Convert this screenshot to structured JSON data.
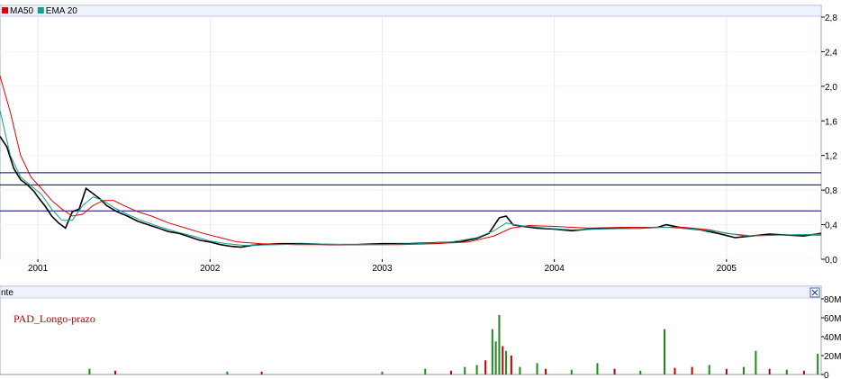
{
  "legend": [
    {
      "label": "MA50",
      "color": "#e00000"
    },
    {
      "label": "EMA 20",
      "color": "#1a9a90"
    }
  ],
  "volume_panel": {
    "header_text": "nte",
    "close_icon": "close-icon",
    "indicator_label": "PAD_Longo-prazo"
  },
  "chart_data": [
    {
      "type": "line",
      "title": "",
      "x_ticks": [
        "2001",
        "2002",
        "2003",
        "2004",
        "2005"
      ],
      "x_tick_positions": [
        2001.0,
        2002.0,
        2003.0,
        2004.0,
        2005.0
      ],
      "xlim": [
        2000.78,
        2005.55
      ],
      "ylim": [
        0.0,
        2.8
      ],
      "y_ticks": [
        "0,0",
        "0,4",
        "0,8",
        "1,2",
        "1,6",
        "2,0",
        "2,4",
        "2,8"
      ],
      "y_tick_values": [
        0.0,
        0.4,
        0.8,
        1.2,
        1.6,
        2.0,
        2.4,
        2.8
      ],
      "grid": true,
      "legend_position": "top-left",
      "horizontal_lines": [
        1.0,
        0.86,
        0.56
      ],
      "series": [
        {
          "name": "",
          "color": "#000000",
          "x": [
            2000.78,
            2000.82,
            2000.86,
            2000.9,
            2000.94,
            2000.98,
            2001.0,
            2001.04,
            2001.08,
            2001.12,
            2001.16,
            2001.2,
            2001.24,
            2001.28,
            2001.32,
            2001.36,
            2001.4,
            2001.46,
            2001.52,
            2001.58,
            2001.64,
            2001.7,
            2001.76,
            2001.82,
            2001.88,
            2001.94,
            2002.0,
            2002.06,
            2002.12,
            2002.18,
            2002.24,
            2002.3,
            2002.4,
            2002.55,
            2002.7,
            2002.85,
            2003.0,
            2003.15,
            2003.3,
            2003.45,
            2003.55,
            2003.62,
            2003.68,
            2003.72,
            2003.76,
            2003.82,
            2003.9,
            2004.0,
            2004.1,
            2004.2,
            2004.3,
            2004.4,
            2004.5,
            2004.6,
            2004.65,
            2004.75,
            2004.85,
            2004.95,
            2005.05,
            2005.15,
            2005.25,
            2005.35,
            2005.45,
            2005.55
          ],
          "values": [
            1.42,
            1.3,
            1.05,
            0.92,
            0.86,
            0.78,
            0.72,
            0.62,
            0.5,
            0.42,
            0.36,
            0.55,
            0.58,
            0.82,
            0.76,
            0.7,
            0.62,
            0.55,
            0.5,
            0.44,
            0.4,
            0.36,
            0.32,
            0.3,
            0.26,
            0.22,
            0.2,
            0.17,
            0.15,
            0.14,
            0.16,
            0.17,
            0.18,
            0.18,
            0.17,
            0.17,
            0.18,
            0.18,
            0.19,
            0.2,
            0.24,
            0.3,
            0.48,
            0.5,
            0.4,
            0.38,
            0.36,
            0.35,
            0.33,
            0.35,
            0.36,
            0.36,
            0.36,
            0.37,
            0.4,
            0.36,
            0.34,
            0.3,
            0.25,
            0.27,
            0.29,
            0.28,
            0.27,
            0.3
          ]
        },
        {
          "name": "MA50",
          "color": "#e00000",
          "x": [
            2000.78,
            2000.84,
            2000.9,
            2000.96,
            2001.02,
            2001.08,
            2001.14,
            2001.2,
            2001.26,
            2001.32,
            2001.38,
            2001.44,
            2001.5,
            2001.58,
            2001.66,
            2001.76,
            2001.86,
            2001.96,
            2002.06,
            2002.16,
            2002.3,
            2002.5,
            2002.7,
            2002.9,
            2003.1,
            2003.3,
            2003.5,
            2003.65,
            2003.75,
            2003.85,
            2004.0,
            2004.2,
            2004.4,
            2004.6,
            2004.75,
            2004.9,
            2005.0,
            2005.15,
            2005.3,
            2005.55
          ],
          "values": [
            2.12,
            1.7,
            1.2,
            0.95,
            0.82,
            0.68,
            0.58,
            0.5,
            0.52,
            0.62,
            0.68,
            0.68,
            0.62,
            0.55,
            0.5,
            0.42,
            0.36,
            0.3,
            0.25,
            0.2,
            0.18,
            0.17,
            0.17,
            0.17,
            0.17,
            0.18,
            0.2,
            0.27,
            0.36,
            0.39,
            0.38,
            0.36,
            0.37,
            0.37,
            0.37,
            0.34,
            0.3,
            0.27,
            0.28,
            0.28
          ]
        },
        {
          "name": "EMA 20",
          "color": "#1a9a90",
          "x": [
            2000.78,
            2000.84,
            2000.9,
            2000.96,
            2001.02,
            2001.08,
            2001.14,
            2001.2,
            2001.26,
            2001.32,
            2001.38,
            2001.44,
            2001.52,
            2001.6,
            2001.7,
            2001.8,
            2001.9,
            2002.0,
            2002.1,
            2002.2,
            2002.4,
            2002.6,
            2002.8,
            2003.0,
            2003.2,
            2003.4,
            2003.55,
            2003.65,
            2003.72,
            2003.8,
            2003.95,
            2004.1,
            2004.3,
            2004.5,
            2004.65,
            2004.8,
            2004.95,
            2005.1,
            2005.3,
            2005.55
          ],
          "values": [
            1.72,
            1.2,
            0.95,
            0.85,
            0.75,
            0.58,
            0.45,
            0.45,
            0.62,
            0.72,
            0.68,
            0.6,
            0.52,
            0.45,
            0.38,
            0.32,
            0.27,
            0.21,
            0.18,
            0.16,
            0.17,
            0.18,
            0.17,
            0.17,
            0.18,
            0.2,
            0.25,
            0.33,
            0.42,
            0.39,
            0.36,
            0.34,
            0.35,
            0.36,
            0.37,
            0.35,
            0.32,
            0.27,
            0.28,
            0.29
          ]
        }
      ]
    },
    {
      "type": "bar",
      "title": "",
      "xlim": [
        2000.78,
        2005.55
      ],
      "ylim": [
        0,
        80
      ],
      "y_ticks": [
        "0",
        "20M",
        "40M",
        "60M",
        "80M"
      ],
      "y_tick_values": [
        0,
        20,
        40,
        60,
        80
      ],
      "ylabel": "",
      "up_color": "#1a8a1a",
      "down_color": "#c00000",
      "spikes": [
        {
          "x": 2001.3,
          "v": 6,
          "up": true
        },
        {
          "x": 2001.45,
          "v": 4,
          "up": false
        },
        {
          "x": 2002.1,
          "v": 3,
          "up": true
        },
        {
          "x": 2002.3,
          "v": 3,
          "up": false
        },
        {
          "x": 2003.0,
          "v": 3,
          "up": true
        },
        {
          "x": 2003.25,
          "v": 6,
          "up": true
        },
        {
          "x": 2003.4,
          "v": 4,
          "up": false
        },
        {
          "x": 2003.48,
          "v": 8,
          "up": true
        },
        {
          "x": 2003.55,
          "v": 10,
          "up": true
        },
        {
          "x": 2003.6,
          "v": 15,
          "up": false
        },
        {
          "x": 2003.64,
          "v": 48,
          "up": true
        },
        {
          "x": 2003.66,
          "v": 35,
          "up": true
        },
        {
          "x": 2003.68,
          "v": 63,
          "up": true
        },
        {
          "x": 2003.7,
          "v": 30,
          "up": false
        },
        {
          "x": 2003.72,
          "v": 25,
          "up": true
        },
        {
          "x": 2003.75,
          "v": 20,
          "up": false
        },
        {
          "x": 2003.8,
          "v": 8,
          "up": true
        },
        {
          "x": 2003.9,
          "v": 12,
          "up": true
        },
        {
          "x": 2003.95,
          "v": 6,
          "up": false
        },
        {
          "x": 2004.1,
          "v": 5,
          "up": true
        },
        {
          "x": 2004.25,
          "v": 12,
          "up": true
        },
        {
          "x": 2004.35,
          "v": 6,
          "up": false
        },
        {
          "x": 2004.5,
          "v": 4,
          "up": true
        },
        {
          "x": 2004.64,
          "v": 48,
          "up": true
        },
        {
          "x": 2004.7,
          "v": 7,
          "up": false
        },
        {
          "x": 2004.8,
          "v": 8,
          "up": false
        },
        {
          "x": 2004.9,
          "v": 10,
          "up": true
        },
        {
          "x": 2005.0,
          "v": 6,
          "up": false
        },
        {
          "x": 2005.1,
          "v": 8,
          "up": true
        },
        {
          "x": 2005.17,
          "v": 25,
          "up": true
        },
        {
          "x": 2005.25,
          "v": 6,
          "up": false
        },
        {
          "x": 2005.35,
          "v": 5,
          "up": true
        },
        {
          "x": 2005.45,
          "v": 4,
          "up": false
        },
        {
          "x": 2005.53,
          "v": 22,
          "up": true
        }
      ]
    }
  ]
}
